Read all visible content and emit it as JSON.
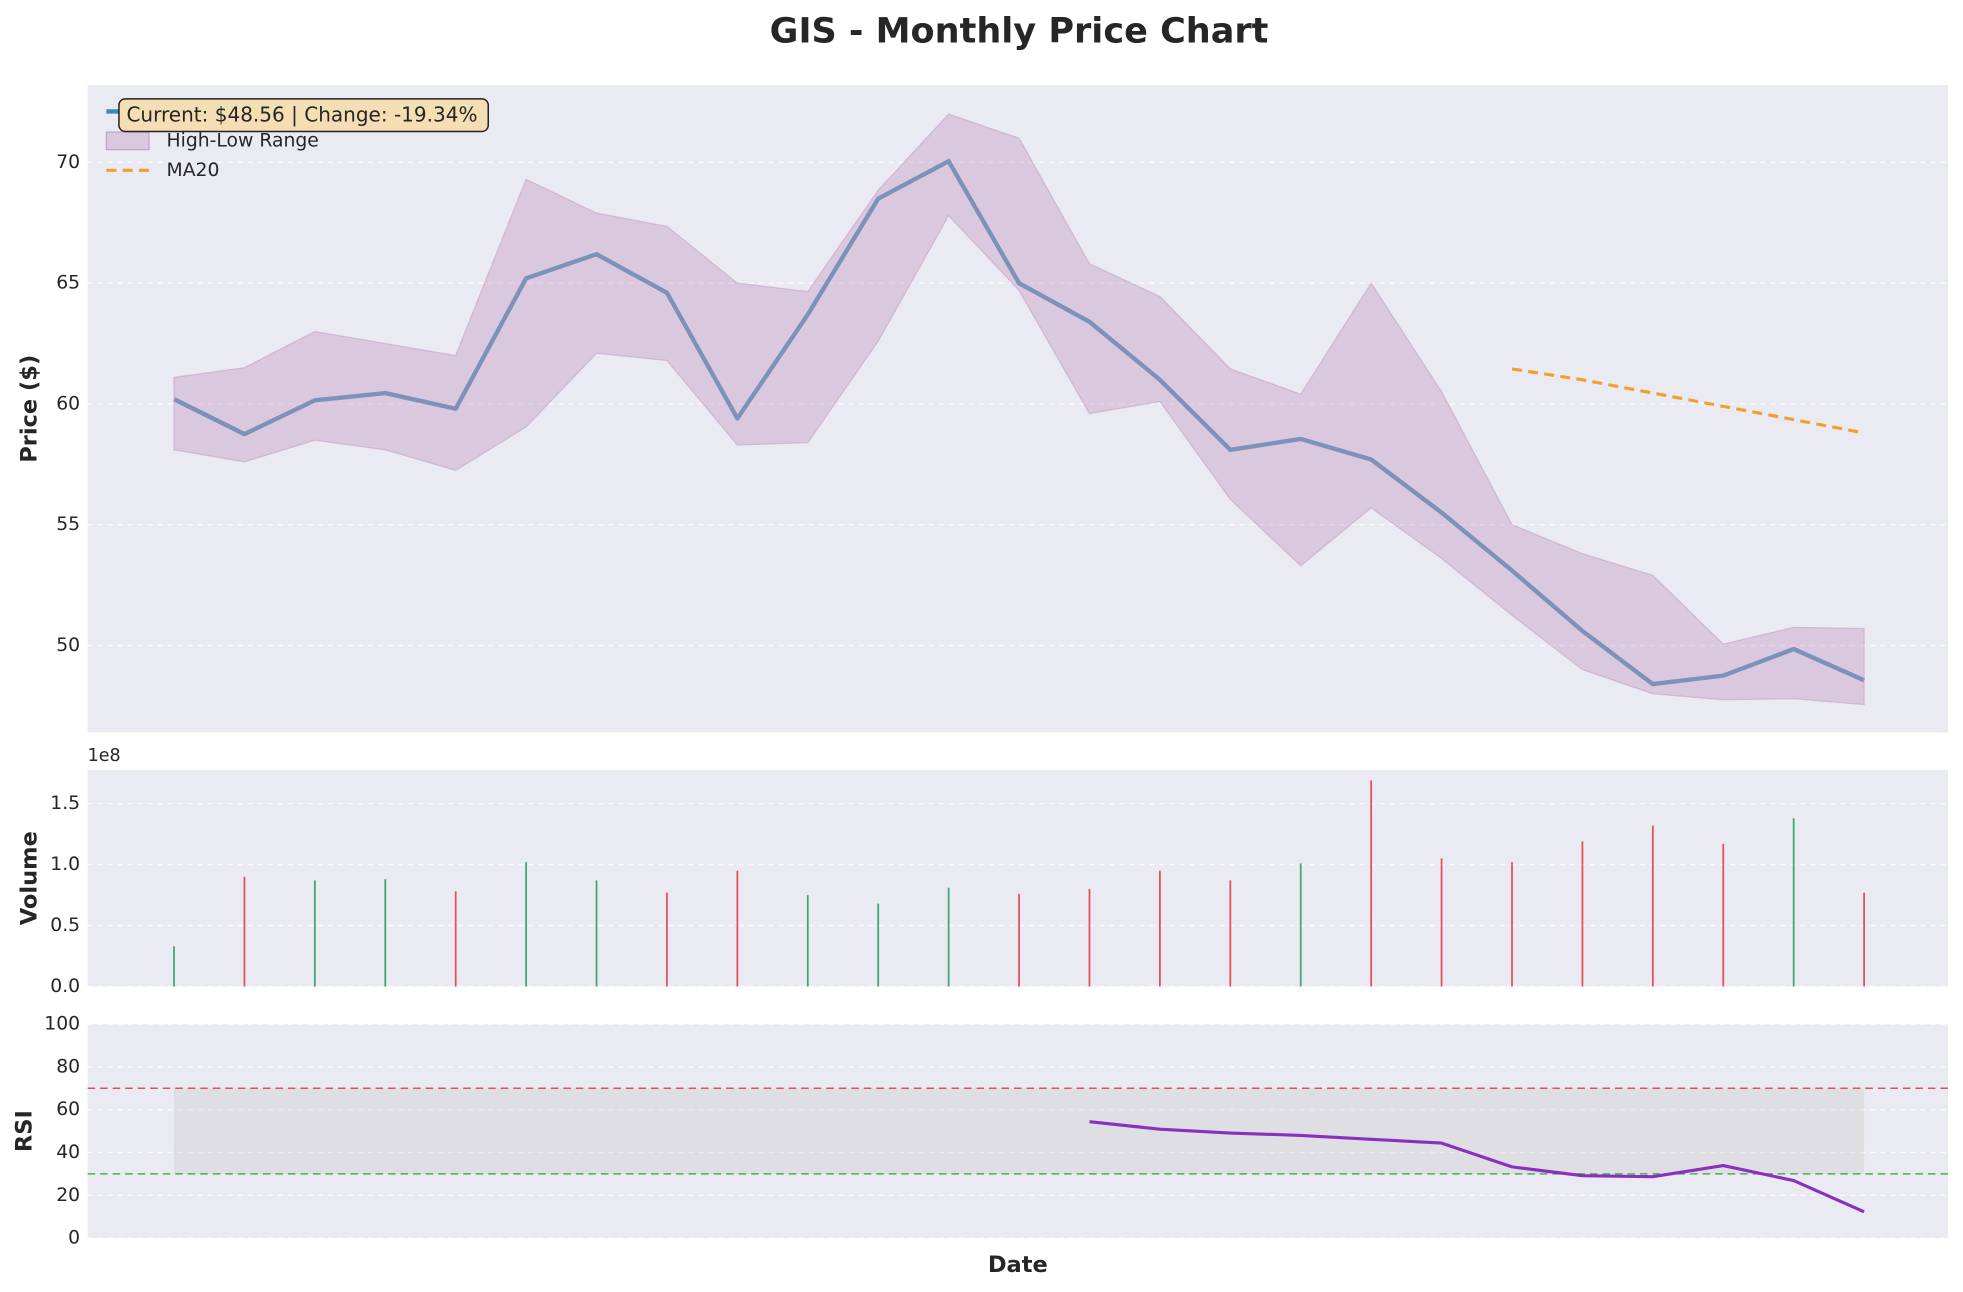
{
  "chart_data": [
    {
      "type": "line",
      "title": "GIS - Monthly Price Chart",
      "ylabel": "Price ($)",
      "annotation": "Current: $48.56 | Change: -19.34%",
      "ylim": [
        46.4,
        73.2
      ],
      "yticks": [
        50,
        55,
        60,
        65,
        70
      ],
      "grid": true,
      "legend": "upper left",
      "series": [
        {
          "name": "Close Price",
          "color": "#3f88ae",
          "values": [
            60.2,
            58.75,
            60.15,
            60.45,
            59.8,
            65.2,
            66.2,
            64.6,
            59.4,
            63.7,
            68.5,
            70.05,
            65.0,
            63.4,
            61.0,
            58.1,
            58.55,
            57.7,
            55.5,
            53.1,
            50.6,
            48.4,
            48.75,
            49.85,
            48.56
          ]
        },
        {
          "name": "High-Low Range",
          "color": "#c8a0c8",
          "high": [
            61.1,
            61.5,
            63.0,
            62.5,
            62.0,
            69.3,
            67.9,
            67.35,
            65.0,
            64.65,
            68.85,
            72.0,
            71.0,
            65.8,
            64.45,
            61.45,
            60.4,
            65.0,
            60.5,
            55.0,
            53.8,
            52.9,
            50.05,
            50.75,
            50.7
          ],
          "low": [
            58.1,
            57.6,
            58.5,
            58.1,
            57.25,
            59.05,
            62.1,
            61.8,
            58.3,
            58.4,
            62.6,
            67.8,
            64.7,
            59.6,
            60.1,
            56.05,
            53.3,
            55.7,
            53.6,
            51.25,
            49.0,
            48.0,
            47.75,
            47.8,
            47.55
          ]
        },
        {
          "name": "MA20",
          "color": "#f0a030",
          "dash": true,
          "values": [
            null,
            null,
            null,
            null,
            null,
            null,
            null,
            null,
            null,
            null,
            null,
            null,
            null,
            null,
            null,
            null,
            null,
            null,
            null,
            61.45,
            61.0,
            60.45,
            59.9,
            59.35,
            58.8
          ]
        }
      ]
    },
    {
      "type": "bar",
      "ylabel": "Volume",
      "offset_text": "1e8",
      "grid": true,
      "ylim": [
        0,
        177600000
      ],
      "yticks": [
        {
          "value": 0,
          "label": "0.0"
        },
        {
          "value": 50000000,
          "label": "0.5"
        },
        {
          "value": 100000000,
          "label": "1.0"
        },
        {
          "value": 150000000,
          "label": "1.5"
        }
      ],
      "values": [
        33000000,
        90000000,
        87000000,
        88000000,
        78000000,
        102000000,
        87000000,
        77000000,
        95000000,
        75000000,
        68000000,
        81000000,
        76000000,
        80000000,
        95000000,
        87000000,
        101000000,
        169000000,
        105000000,
        102000000,
        119000000,
        132000000,
        117000000,
        138000000,
        77000000
      ],
      "colors": [
        "#3aa875",
        "#e0505a",
        "#3aa875",
        "#3aa875",
        "#e0505a",
        "#3aa875",
        "#3aa875",
        "#e0505a",
        "#e0505a",
        "#3aa875",
        "#3aa875",
        "#3aa875",
        "#e0505a",
        "#e0505a",
        "#e0505a",
        "#e0505a",
        "#3aa875",
        "#e0505a",
        "#e0505a",
        "#e0505a",
        "#e0505a",
        "#e0505a",
        "#e0505a",
        "#3aa875",
        "#e0505a"
      ]
    },
    {
      "type": "line",
      "ylabel": "RSI",
      "xlabel": "Date",
      "grid": true,
      "ylim": [
        0,
        100
      ],
      "yticks": [
        0,
        20,
        40,
        60,
        80,
        100
      ],
      "hlines": [
        {
          "value": 70,
          "color": "#e0505a"
        },
        {
          "value": 30,
          "color": "#4caf50"
        }
      ],
      "series": [
        {
          "color": "#8a2fbe",
          "values": [
            null,
            null,
            null,
            null,
            null,
            null,
            null,
            null,
            null,
            null,
            null,
            null,
            null,
            54.4,
            50.9,
            49.1,
            48.0,
            46.2,
            44.4,
            33.3,
            29.2,
            28.7,
            33.9,
            26.9,
            12.3
          ]
        }
      ]
    }
  ]
}
